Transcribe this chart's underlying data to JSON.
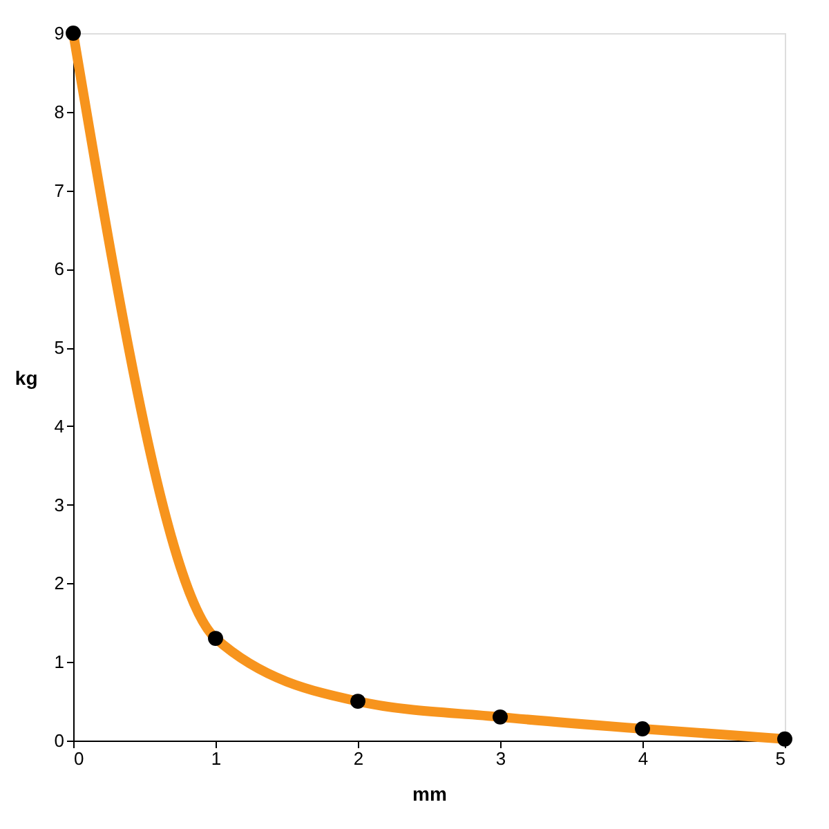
{
  "chart_data": {
    "type": "line",
    "xlabel": "mm",
    "ylabel": "kg",
    "x": [
      0,
      1,
      2,
      3,
      4,
      5
    ],
    "series": [
      {
        "color": "#f7941d",
        "values": [
          9,
          1.3,
          0.5,
          0.3,
          0.15,
          0.02
        ]
      }
    ],
    "xlim": [
      0,
      5
    ],
    "xticks": [
      0,
      1,
      2,
      3,
      4,
      5
    ],
    "ylim": [
      0,
      9
    ],
    "yticks": [
      0,
      1,
      2,
      3,
      4,
      5,
      6,
      7,
      8,
      9
    ],
    "grid": false,
    "legend": false,
    "marker": "circle",
    "line_style": "solid"
  }
}
